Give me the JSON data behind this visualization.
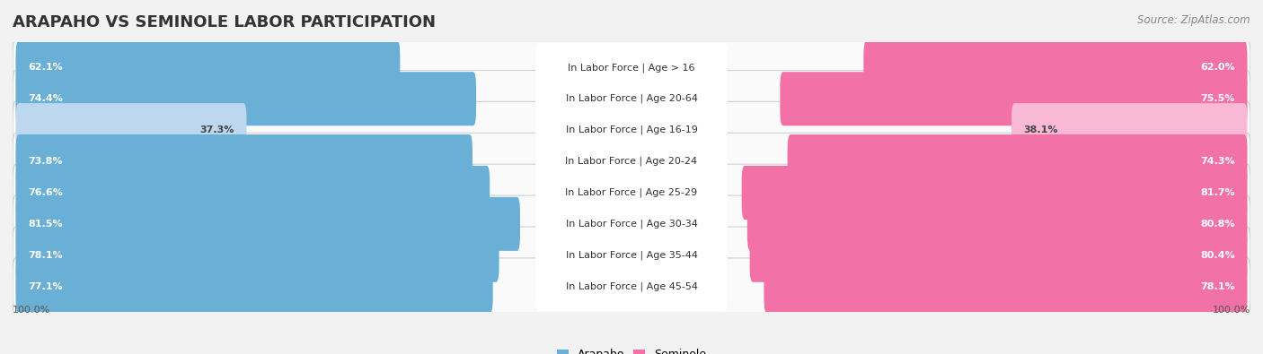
{
  "title": "ARAPAHO VS SEMINOLE LABOR PARTICIPATION",
  "source": "Source: ZipAtlas.com",
  "categories": [
    "In Labor Force | Age > 16",
    "In Labor Force | Age 20-64",
    "In Labor Force | Age 16-19",
    "In Labor Force | Age 20-24",
    "In Labor Force | Age 25-29",
    "In Labor Force | Age 30-34",
    "In Labor Force | Age 35-44",
    "In Labor Force | Age 45-54"
  ],
  "arapaho": [
    62.1,
    74.4,
    37.3,
    73.8,
    76.6,
    81.5,
    78.1,
    77.1
  ],
  "seminole": [
    62.0,
    75.5,
    38.1,
    74.3,
    81.7,
    80.8,
    80.4,
    78.1
  ],
  "arapaho_color_full": "#6aafd6",
  "arapaho_color_light": "#bdd7ee",
  "seminole_color_full": "#f272a8",
  "seminole_color_light": "#f9b8d4",
  "bg_color": "#f2f2f2",
  "row_bg_color": "#ffffff",
  "row_border_color": "#cccccc",
  "max_val": 100.0,
  "label_fontsize": 8.0,
  "cat_fontsize": 8.0,
  "title_fontsize": 13,
  "legend_fontsize": 9,
  "light_rows": [
    2
  ]
}
